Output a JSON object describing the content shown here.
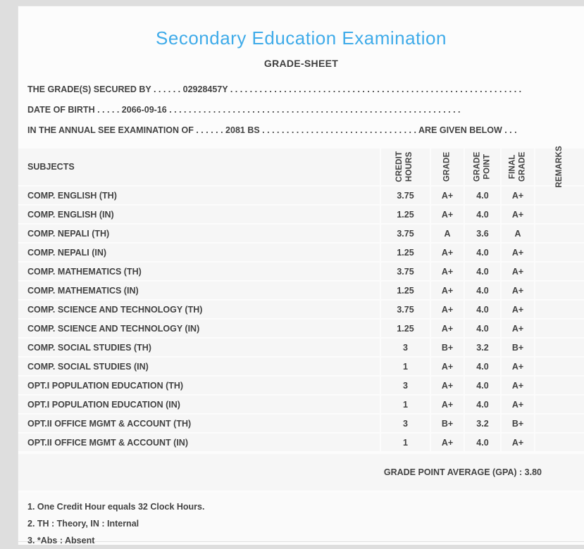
{
  "header": {
    "title": "Secondary Education Examination",
    "subtitle": "GRADE-SHEET"
  },
  "info": {
    "secured_by": {
      "label": "THE GRADE(S) SECURED BY",
      "dots_before": " . . . . . . ",
      "value": "02928457Y",
      "dots_after": " . . . . . . . . . . . . . . . . . . . . . . . . . . . . . . . . . . . . . . . . . . . . . . . . . . . . . . . . . . . ."
    },
    "date_of_birth": {
      "label": "DATE OF BIRTH",
      "dots_before": " . . . . . ",
      "value": "2066-09-16",
      "dots_after": " . . . . . . . . . . . . . . . . . . . . . . . . . . . . . . . . . . . . . . . . . . . . . . . . . . . . . . . . . . . ."
    },
    "exam_year": {
      "label": "IN THE ANNUAL SEE EXAMINATION OF",
      "dots_before": " . . . . . . ",
      "value": "2081 BS",
      "dots_after": " . . . . . . . . . . . . . . . . . . . . . . . . . . . . . . . . ",
      "suffix": "ARE GIVEN BELOW . . ."
    }
  },
  "table": {
    "headers": {
      "subjects": "SUBJECTS",
      "credit_hours": "CREDIT\nHOURS",
      "grade": "GRADE",
      "grade_point": "GRADE\nPOINT",
      "final_grade": "FINAL\nGRADE",
      "remarks": "REMARKS"
    },
    "rows": [
      {
        "subject": "COMP. ENGLISH (TH)",
        "credit": "3.75",
        "grade": "A+",
        "point": "4.0",
        "final": "A+",
        "remarks": ""
      },
      {
        "subject": "COMP. ENGLISH (IN)",
        "credit": "1.25",
        "grade": "A+",
        "point": "4.0",
        "final": "A+",
        "remarks": ""
      },
      {
        "subject": "COMP. NEPALI (TH)",
        "credit": "3.75",
        "grade": "A",
        "point": "3.6",
        "final": "A",
        "remarks": ""
      },
      {
        "subject": "COMP. NEPALI (IN)",
        "credit": "1.25",
        "grade": "A+",
        "point": "4.0",
        "final": "A+",
        "remarks": ""
      },
      {
        "subject": "COMP. MATHEMATICS (TH)",
        "credit": "3.75",
        "grade": "A+",
        "point": "4.0",
        "final": "A+",
        "remarks": ""
      },
      {
        "subject": "COMP. MATHEMATICS (IN)",
        "credit": "1.25",
        "grade": "A+",
        "point": "4.0",
        "final": "A+",
        "remarks": ""
      },
      {
        "subject": "COMP. SCIENCE AND TECHNOLOGY (TH)",
        "credit": "3.75",
        "grade": "A+",
        "point": "4.0",
        "final": "A+",
        "remarks": ""
      },
      {
        "subject": "COMP. SCIENCE AND TECHNOLOGY (IN)",
        "credit": "1.25",
        "grade": "A+",
        "point": "4.0",
        "final": "A+",
        "remarks": ""
      },
      {
        "subject": "COMP. SOCIAL STUDIES (TH)",
        "credit": "3",
        "grade": "B+",
        "point": "3.2",
        "final": "B+",
        "remarks": ""
      },
      {
        "subject": "COMP. SOCIAL STUDIES (IN)",
        "credit": "1",
        "grade": "A+",
        "point": "4.0",
        "final": "A+",
        "remarks": ""
      },
      {
        "subject": "OPT.I POPULATION EDUCATION (TH)",
        "credit": "3",
        "grade": "A+",
        "point": "4.0",
        "final": "A+",
        "remarks": ""
      },
      {
        "subject": "OPT.I POPULATION EDUCATION (IN)",
        "credit": "1",
        "grade": "A+",
        "point": "4.0",
        "final": "A+",
        "remarks": ""
      },
      {
        "subject": "OPT.II OFFICE MGMT & ACCOUNT (TH)",
        "credit": "3",
        "grade": "B+",
        "point": "3.2",
        "final": "B+",
        "remarks": ""
      },
      {
        "subject": "OPT.II OFFICE MGMT & ACCOUNT (IN)",
        "credit": "1",
        "grade": "A+",
        "point": "4.0",
        "final": "A+",
        "remarks": ""
      }
    ]
  },
  "gpa": {
    "label": "GRADE POINT AVERAGE (GPA) : ",
    "value": "3.80"
  },
  "footnotes": [
    "1. One Credit Hour equals 32 Clock Hours.",
    "2. TH : Theory, IN : Internal",
    "3. *Abs : Absent"
  ],
  "colors": {
    "title_blue": "#3fabe9",
    "text": "#424242",
    "cell_bg": "#f6f6f6",
    "page_bg": "#dedede"
  }
}
